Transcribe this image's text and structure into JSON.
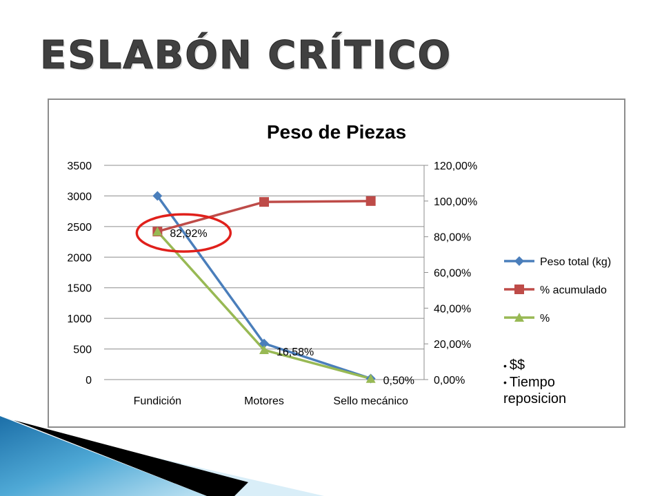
{
  "slide": {
    "title": "ESLABÓN CRÍTICO",
    "bullets": [
      "$$",
      "Tiempo reposicion"
    ]
  },
  "chart_data": {
    "type": "line",
    "title": "Peso de Piezas",
    "categories": [
      "Fundición",
      "Motores",
      "Sello mecánico"
    ],
    "y_left": {
      "ticks": [
        "0",
        "500",
        "1000",
        "1500",
        "2000",
        "2500",
        "3000",
        "3500"
      ],
      "min": 0,
      "max": 3500
    },
    "y_right": {
      "ticks": [
        "0,00%",
        "20,00%",
        "40,00%",
        "60,00%",
        "80,00%",
        "100,00%",
        "120,00%"
      ],
      "min": 0,
      "max": 120
    },
    "series": [
      {
        "name": "Peso total (kg)",
        "axis": "left",
        "color": "#4a7ebb",
        "marker": "diamond",
        "values": [
          3000,
          590,
          17
        ]
      },
      {
        "name": "% acumulado",
        "axis": "right",
        "color": "#be4b48",
        "marker": "square",
        "values": [
          82.92,
          99.5,
          100
        ]
      },
      {
        "name": "%",
        "axis": "right",
        "color": "#98b954",
        "marker": "triangle",
        "values": [
          82.92,
          16.58,
          0.5
        ]
      }
    ],
    "data_labels": [
      "82,92%",
      "16,58%",
      "0,50%"
    ],
    "legend_position": "right",
    "grid": true,
    "highlight": {
      "category": "Fundición",
      "color": "#e0201b"
    }
  }
}
